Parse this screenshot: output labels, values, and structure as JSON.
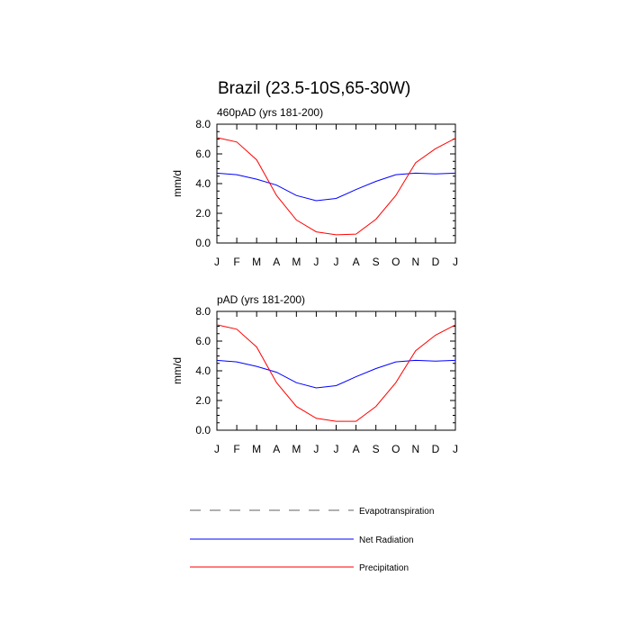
{
  "chart_data": {
    "title": "Brazil (23.5-10S,65-30W)",
    "type": "line",
    "panels": [
      {
        "subtitle": "460pAD (yrs 181-200)",
        "ylabel": "mm/d",
        "ylim": [
          0,
          8
        ],
        "yticks": [
          "0.0",
          "2.0",
          "4.0",
          "6.0",
          "8.0"
        ],
        "categories": [
          "J",
          "F",
          "M",
          "A",
          "M",
          "J",
          "J",
          "A",
          "S",
          "O",
          "N",
          "D",
          "J"
        ],
        "series": [
          {
            "name": "Net Radiation",
            "color": "#0000ff",
            "values": [
              4.7,
              4.6,
              4.3,
              3.9,
              3.2,
              2.85,
              3.0,
              3.6,
              4.15,
              4.6,
              4.7,
              4.65,
              4.7
            ]
          },
          {
            "name": "Precipitation",
            "color": "#ff0000",
            "values": [
              7.1,
              6.8,
              5.6,
              3.2,
              1.55,
              0.75,
              0.55,
              0.6,
              1.6,
              3.2,
              5.4,
              6.35,
              7.05
            ]
          }
        ]
      },
      {
        "subtitle": "pAD (yrs 181-200)",
        "ylabel": "mm/d",
        "ylim": [
          0,
          8
        ],
        "yticks": [
          "0.0",
          "2.0",
          "4.0",
          "6.0",
          "8.0"
        ],
        "categories": [
          "J",
          "F",
          "M",
          "A",
          "M",
          "J",
          "J",
          "A",
          "S",
          "O",
          "N",
          "D",
          "J"
        ],
        "series": [
          {
            "name": "Net Radiation",
            "color": "#0000ff",
            "values": [
              4.7,
              4.6,
              4.3,
              3.9,
              3.2,
              2.85,
              3.0,
              3.6,
              4.15,
              4.6,
              4.7,
              4.65,
              4.7
            ]
          },
          {
            "name": "Precipitation",
            "color": "#ff0000",
            "values": [
              7.1,
              6.8,
              5.6,
              3.2,
              1.6,
              0.8,
              0.6,
              0.6,
              1.6,
              3.2,
              5.35,
              6.4,
              7.1
            ]
          }
        ]
      }
    ],
    "legend": [
      {
        "label": "Evapotranspiration",
        "color": "#808080",
        "style": "dashed"
      },
      {
        "label": "Net Radiation",
        "color": "#0000ff",
        "style": "solid"
      },
      {
        "label": "Precipitation",
        "color": "#ff0000",
        "style": "solid"
      }
    ]
  }
}
